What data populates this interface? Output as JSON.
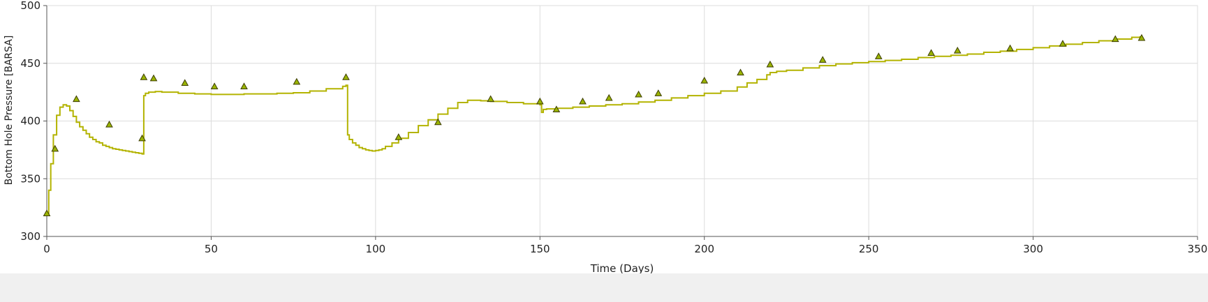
{
  "chart_data": {
    "type": "line",
    "xlabel": "Time (Days)",
    "ylabel": "Bottom Hole Pressure [BARSA]",
    "xlim": [
      0,
      350
    ],
    "ylim": [
      300,
      500
    ],
    "x_ticks": [
      0,
      50,
      100,
      150,
      200,
      250,
      300,
      350
    ],
    "y_ticks": [
      300,
      350,
      400,
      450,
      500
    ],
    "grid": true,
    "legend": "none",
    "colors": {
      "line": "#b3b300",
      "marker_fill": "#9ab400",
      "marker_stroke": "#3c3c00",
      "grid": "#dcdcdc",
      "axis": "#555555",
      "footer": "#f0f0f0"
    },
    "series": [
      {
        "kind": "step-line",
        "x": [
          0,
          0.6,
          1.2,
          2,
          3,
          4,
          5,
          6,
          7,
          8,
          9,
          10,
          11,
          12,
          13,
          14,
          15,
          16,
          17,
          18,
          19,
          20,
          21,
          22,
          23,
          24,
          25,
          26,
          27,
          28,
          29,
          29.5,
          30,
          31,
          33,
          35,
          40,
          45,
          50,
          55,
          60,
          65,
          70,
          75,
          80,
          85,
          90,
          91,
          91.5,
          92,
          93,
          94,
          95,
          96,
          97,
          98,
          99,
          100,
          101,
          102,
          103,
          105,
          107,
          110,
          113,
          116,
          119,
          122,
          125,
          128,
          130,
          132,
          135,
          140,
          145,
          150,
          150.5,
          151,
          152,
          155,
          160,
          165,
          170,
          175,
          180,
          185,
          190,
          195,
          200,
          205,
          210,
          213,
          216,
          219,
          220,
          222,
          225,
          230,
          235,
          240,
          245,
          250,
          255,
          260,
          265,
          270,
          275,
          280,
          285,
          290,
          295,
          300,
          305,
          310,
          315,
          320,
          325,
          330,
          332.5
        ],
        "y": [
          320,
          340,
          363,
          388,
          405,
          412,
          414,
          413,
          409,
          404,
          399,
          395,
          392,
          389,
          386,
          384,
          382,
          381,
          379,
          378,
          377,
          376,
          375.5,
          375,
          374.5,
          374,
          373.5,
          373,
          372.5,
          372,
          371.5,
          422,
          424,
          425,
          425.5,
          425,
          424,
          423.5,
          423,
          423,
          423.5,
          423.5,
          424,
          424.5,
          426,
          428,
          430,
          431,
          388,
          384,
          381,
          379,
          377,
          376,
          375,
          374.5,
          374,
          374.5,
          375,
          376,
          378,
          381,
          385,
          390,
          396,
          401,
          406,
          411,
          416,
          418,
          418,
          417.5,
          417,
          416,
          415,
          414,
          407.5,
          410,
          410.5,
          411,
          412,
          413,
          414,
          415,
          416.5,
          418,
          420,
          422,
          424,
          426,
          429.5,
          433,
          436,
          440,
          442,
          443,
          444,
          446,
          448,
          449.5,
          450.5,
          451.5,
          452.5,
          453.5,
          455,
          456,
          457,
          458,
          459.5,
          460.5,
          462,
          463.5,
          465,
          466.5,
          468,
          469.5,
          471,
          472.5,
          473.5
        ]
      },
      {
        "kind": "markers",
        "marker": "triangle",
        "x": [
          0,
          2.5,
          9,
          19,
          29,
          29.5,
          32.5,
          42,
          51,
          60,
          76,
          91,
          107,
          119,
          135,
          150,
          155,
          163,
          171,
          180,
          186,
          200,
          211,
          220,
          236,
          253,
          269,
          277,
          293,
          309,
          325,
          333
        ],
        "y": [
          320,
          376,
          419,
          397,
          385,
          438,
          437,
          433,
          430,
          430,
          434,
          438,
          386,
          399,
          419,
          417,
          410,
          417,
          420,
          423,
          424,
          435,
          442,
          449,
          453,
          456,
          459,
          461,
          463,
          467,
          471,
          472
        ]
      }
    ]
  }
}
